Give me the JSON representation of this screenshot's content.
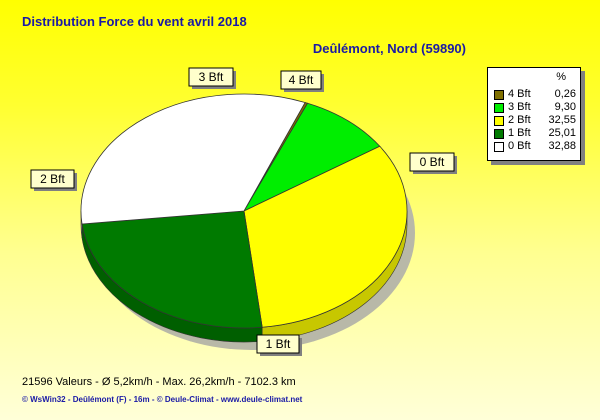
{
  "chart_data": {
    "type": "pie",
    "title": "Distribution Force du vent  avril 2018",
    "subtitle": "Deûlémont, Nord (59890)",
    "legend_header": "%",
    "legend_position": "top-right",
    "slices": [
      {
        "label": "4 Bft",
        "value": 0.26,
        "value_text": "0,26",
        "color": "#807000"
      },
      {
        "label": "3 Bft",
        "value": 9.3,
        "value_text": "9,30",
        "color": "#00ee00"
      },
      {
        "label": "2 Bft",
        "value": 32.55,
        "value_text": "32,55",
        "color": "#ffff00"
      },
      {
        "label": "1 Bft",
        "value": 25.01,
        "value_text": "25,01",
        "color": "#007a00"
      },
      {
        "label": "0 Bft",
        "value": 32.88,
        "value_text": "32,88",
        "color": "#ffffff"
      }
    ]
  },
  "footer": {
    "stats": "21596 Valeurs   -   Ø 5,2km/h  -  Max. 26,2km/h  -   7102.3 km",
    "credits": "© WsWin32  -  Deûlémont (F) - 16m  -  © Deule-Climat - www.deule-climat.net"
  }
}
